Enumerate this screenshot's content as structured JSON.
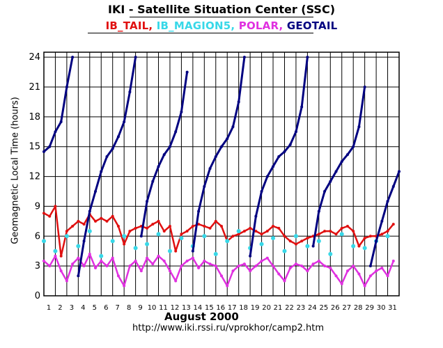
{
  "title": "IKI - Satellite Situation Center (SSC)",
  "legend": [
    {
      "label": "IB_TAIL,",
      "color": "#e01010"
    },
    {
      "label": "IB_MAGION5,",
      "color": "#38d8e8"
    },
    {
      "label": "POLAR,",
      "color": "#e030e0"
    },
    {
      "label": "GEOTAIL",
      "color": "#000080"
    }
  ],
  "url": "http://www.iki.rssi.ru/vprokhor/camp2.htm",
  "chart_data": {
    "type": "scatter",
    "title": "IKI - Satellite Situation Center (SSC)",
    "xlabel": "August   2000",
    "ylabel": "Geomagnetic  Local Time  (hours)",
    "xlim": [
      1,
      32
    ],
    "ylim": [
      0,
      24.5
    ],
    "grid": true,
    "x_ticks": [
      "1",
      "2",
      "3",
      "4",
      "5",
      "6",
      "7",
      "8",
      "9",
      "10",
      "11",
      "12",
      "13",
      "14",
      "15",
      "16",
      "17",
      "18",
      "19",
      "20",
      "21",
      "22",
      "23",
      "24",
      "25",
      "26",
      "27",
      "28",
      "29",
      "30",
      "31"
    ],
    "y_ticks": [
      "0",
      "3",
      "6",
      "9",
      "12",
      "15",
      "18",
      "21",
      "24"
    ],
    "series": [
      {
        "name": "IB_TAIL",
        "color": "#e01010",
        "x": [
          1.0,
          1.5,
          2.0,
          2.5,
          3.0,
          3.5,
          4.0,
          4.5,
          5.0,
          5.5,
          6.0,
          6.5,
          7.0,
          7.5,
          8.0,
          8.5,
          9.0,
          9.5,
          10.0,
          10.5,
          11.0,
          11.5,
          12.0,
          12.5,
          13.0,
          13.5,
          14.0,
          14.5,
          15.0,
          15.5,
          16.0,
          16.5,
          17.0,
          17.5,
          18.0,
          18.5,
          19.0,
          19.5,
          20.0,
          20.5,
          21.0,
          21.5,
          22.0,
          22.5,
          23.0,
          23.5,
          24.0,
          24.5,
          25.0,
          25.5,
          26.0,
          26.5,
          27.0,
          27.5,
          28.0,
          28.5,
          29.0,
          29.5,
          30.0,
          30.5,
          31.0,
          31.5
        ],
        "y": [
          8.3,
          8.0,
          9.0,
          4.0,
          6.5,
          7.0,
          7.5,
          7.2,
          8.2,
          7.5,
          7.8,
          7.5,
          8.0,
          7.0,
          5.2,
          6.5,
          6.8,
          7.0,
          6.8,
          7.2,
          7.5,
          6.5,
          7.0,
          4.5,
          6.2,
          6.5,
          7.0,
          7.2,
          7.0,
          6.8,
          7.5,
          7.0,
          5.5,
          6.0,
          6.2,
          6.5,
          6.8,
          6.5,
          6.2,
          6.5,
          7.0,
          6.8,
          6.0,
          5.5,
          5.2,
          5.5,
          5.8,
          6.0,
          6.2,
          6.5,
          6.5,
          6.2,
          6.8,
          7.0,
          6.5,
          5.0,
          5.8,
          6.0,
          6.0,
          6.2,
          6.5,
          7.2
        ]
      },
      {
        "name": "IB_MAGION5",
        "color": "#38d8e8",
        "x": [
          1.0,
          2.0,
          3.0,
          4.0,
          5.0,
          6.0,
          7.0,
          8.0,
          9.0,
          10.0,
          11.0,
          12.0,
          13.0,
          14.0,
          15.0,
          16.0,
          17.0,
          18.0,
          19.0,
          20.0,
          21.0,
          22.0,
          23.0,
          24.0,
          25.0,
          26.0,
          27.0,
          28.0,
          29.0,
          30.0,
          31.0
        ],
        "y": [
          5.5,
          4.5,
          6.0,
          5.0,
          6.5,
          4.0,
          5.5,
          6.0,
          4.8,
          5.2,
          6.2,
          4.5,
          5.8,
          5.0,
          6.0,
          4.2,
          5.5,
          6.5,
          4.8,
          5.2,
          5.8,
          4.5,
          6.0,
          5.0,
          5.5,
          4.2,
          6.2,
          5.0,
          4.8,
          5.5,
          6.0
        ]
      },
      {
        "name": "POLAR",
        "color": "#e030e0",
        "x": [
          1.0,
          1.5,
          2.0,
          2.5,
          3.0,
          3.5,
          4.0,
          4.5,
          5.0,
          5.5,
          6.0,
          6.5,
          7.0,
          7.5,
          8.0,
          8.5,
          9.0,
          9.5,
          10.0,
          10.5,
          11.0,
          11.5,
          12.0,
          12.5,
          13.0,
          13.5,
          14.0,
          14.5,
          15.0,
          15.5,
          16.0,
          16.5,
          17.0,
          17.5,
          18.0,
          18.5,
          19.0,
          19.5,
          20.0,
          20.5,
          21.0,
          21.5,
          22.0,
          22.5,
          23.0,
          23.5,
          24.0,
          24.5,
          25.0,
          25.5,
          26.0,
          26.5,
          27.0,
          27.5,
          28.0,
          28.5,
          29.0,
          29.5,
          30.0,
          30.5,
          31.0,
          31.5
        ],
        "y": [
          3.5,
          3.0,
          4.0,
          2.5,
          1.5,
          3.2,
          3.8,
          3.0,
          4.2,
          2.8,
          3.5,
          3.0,
          3.8,
          2.0,
          1.0,
          3.0,
          3.5,
          2.5,
          3.8,
          3.2,
          4.0,
          3.5,
          2.5,
          1.5,
          3.0,
          3.5,
          3.8,
          2.8,
          3.5,
          3.2,
          3.0,
          2.0,
          1.0,
          2.5,
          3.0,
          3.2,
          2.5,
          3.0,
          3.5,
          3.8,
          3.0,
          2.2,
          1.5,
          2.8,
          3.2,
          3.0,
          2.5,
          3.2,
          3.5,
          3.0,
          2.8,
          2.0,
          1.2,
          2.5,
          3.0,
          2.2,
          1.0,
          2.0,
          2.5,
          2.8,
          2.0,
          3.5
        ]
      },
      {
        "name": "GEOTAIL",
        "color": "#000080",
        "x": [
          1.0,
          1.5,
          2.0,
          2.5,
          3.0,
          3.5,
          4.0,
          4.5,
          5.0,
          5.5,
          6.0,
          6.5,
          7.0,
          7.5,
          8.0,
          8.5,
          9.0,
          9.5,
          10.0,
          10.5,
          11.0,
          11.5,
          12.0,
          12.5,
          13.0,
          13.5,
          14.0,
          14.5,
          15.0,
          15.5,
          16.0,
          16.5,
          17.0,
          17.5,
          18.0,
          18.5,
          19.0,
          19.5,
          20.0,
          20.5,
          21.0,
          21.5,
          22.0,
          22.5,
          23.0,
          23.5,
          24.0,
          24.5,
          25.0,
          25.5,
          26.0,
          26.5,
          27.0,
          27.5,
          28.0,
          28.5,
          29.0,
          29.5,
          30.0,
          30.5,
          31.0,
          31.5,
          32.0
        ],
        "y": [
          14.5,
          15.0,
          16.5,
          17.5,
          21.0,
          24.0,
          2.0,
          5.5,
          8.5,
          10.5,
          12.5,
          14.0,
          14.8,
          16.0,
          17.5,
          20.5,
          24.0,
          6.0,
          9.5,
          11.5,
          13.0,
          14.2,
          15.0,
          16.5,
          18.5,
          22.5,
          4.5,
          8.5,
          11.0,
          12.8,
          14.0,
          15.0,
          15.8,
          17.0,
          19.5,
          24.0,
          4.0,
          8.0,
          10.5,
          12.0,
          13.0,
          14.0,
          14.5,
          15.2,
          16.5,
          19.0,
          24.0,
          5.0,
          8.5,
          10.5,
          11.5,
          12.5,
          13.5,
          14.2,
          15.0,
          17.0,
          21.0,
          3.0,
          5.5,
          7.5,
          9.5,
          11.0,
          12.5
        ]
      }
    ]
  }
}
